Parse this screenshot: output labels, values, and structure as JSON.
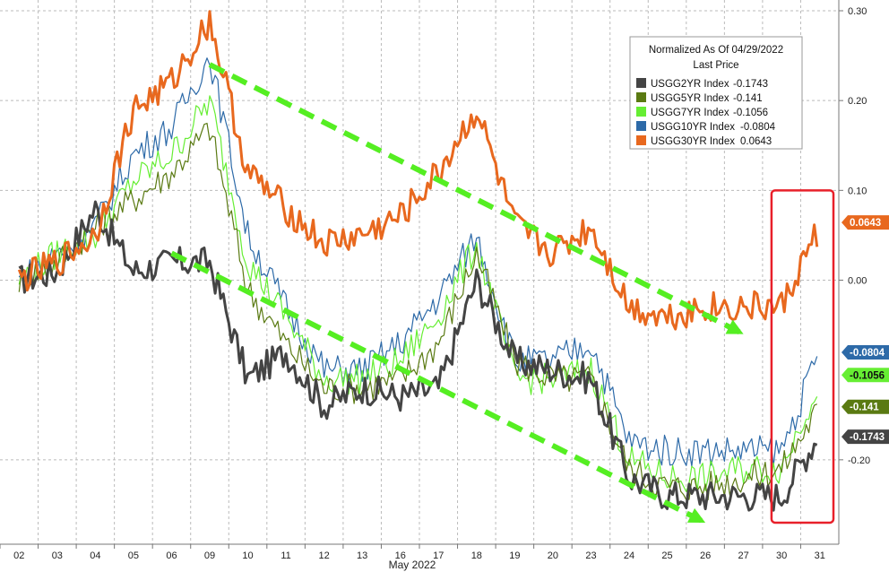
{
  "chart_data": {
    "type": "line",
    "title": "",
    "xlabel": "May 2022",
    "ylabel": "",
    "ylim": [
      -0.29,
      0.3
    ],
    "grid": true,
    "legend_placement": "top-right",
    "legend": {
      "header_line1": "Normalized As Of 04/29/2022",
      "header_line2": "Last Price"
    },
    "y_ticks": [
      {
        "value": 0.3,
        "label": "0.30"
      },
      {
        "value": 0.2,
        "label": "0.20"
      },
      {
        "value": 0.1,
        "label": "0.10"
      },
      {
        "value": 0.0,
        "label": "0.00"
      },
      {
        "value": -0.2,
        "label": "-0.20"
      }
    ],
    "categories": [
      "02",
      "03",
      "04",
      "05",
      "06",
      "09",
      "10",
      "11",
      "12",
      "13",
      "16",
      "17",
      "18",
      "19",
      "20",
      "23",
      "24",
      "25",
      "26",
      "27",
      "30",
      "31"
    ],
    "series": [
      {
        "name": "USGG2YR Index",
        "label": "USGG2YR Index",
        "value_label": "-0.1743",
        "last": -0.1743,
        "color": "#444444",
        "values": [
          0.0,
          0.01,
          0.08,
          0.01,
          0.02,
          0.02,
          -0.11,
          -0.08,
          -0.14,
          -0.12,
          -0.13,
          -0.12,
          0.0,
          -0.09,
          -0.1,
          -0.11,
          -0.22,
          -0.24,
          -0.24,
          -0.24,
          -0.24,
          -0.17
        ]
      },
      {
        "name": "USGG5YR Index",
        "label": "USGG5YR Index",
        "value_label": "-0.141",
        "last": -0.141,
        "color": "#5a7a12",
        "values": [
          0.0,
          0.02,
          0.06,
          0.09,
          0.12,
          0.17,
          -0.01,
          -0.07,
          -0.12,
          -0.12,
          -0.11,
          -0.07,
          0.03,
          -0.09,
          -0.11,
          -0.11,
          -0.21,
          -0.23,
          -0.23,
          -0.22,
          -0.21,
          -0.14
        ]
      },
      {
        "name": "USGG7YR Index",
        "label": "USGG7YR Index",
        "value_label": "-0.1056",
        "last": -0.1056,
        "color": "#66ee33",
        "values": [
          0.0,
          0.03,
          0.05,
          0.11,
          0.14,
          0.2,
          0.02,
          -0.04,
          -0.11,
          -0.11,
          -0.09,
          -0.04,
          0.04,
          -0.11,
          -0.11,
          -0.1,
          -0.2,
          -0.22,
          -0.22,
          -0.21,
          -0.21,
          -0.11
        ]
      },
      {
        "name": "USGG10YR Index",
        "label": "USGG10YR Index",
        "value_label": "-0.0804",
        "last": -0.0804,
        "color": "#2d6aa8",
        "values": [
          0.0,
          0.03,
          0.06,
          0.14,
          0.17,
          0.25,
          0.05,
          -0.03,
          -0.1,
          -0.1,
          -0.07,
          -0.02,
          0.05,
          -0.09,
          -0.09,
          -0.07,
          -0.18,
          -0.19,
          -0.19,
          -0.19,
          -0.19,
          -0.08
        ]
      },
      {
        "name": "USGG30YR Index",
        "label": "USGG30YR Index",
        "value_label": "0.0643",
        "last": 0.0643,
        "color": "#e8681e",
        "values": [
          0.0,
          0.02,
          0.05,
          0.19,
          0.22,
          0.29,
          0.12,
          0.08,
          0.04,
          0.05,
          0.07,
          0.12,
          0.19,
          0.06,
          0.03,
          0.06,
          -0.03,
          -0.04,
          -0.03,
          -0.03,
          -0.03,
          0.06
        ]
      }
    ],
    "annotations": [
      {
        "type": "dashed-arrow",
        "color": "#55ee22",
        "from": {
          "x": "09",
          "y": 0.24
        },
        "to": {
          "x": "27",
          "y": -0.06
        }
      },
      {
        "type": "dashed-arrow",
        "color": "#55ee22",
        "from": {
          "x": "06",
          "y": 0.03
        },
        "to": {
          "x": "26",
          "y": -0.27
        }
      },
      {
        "type": "highlight-box",
        "color": "#e8202a",
        "x_from": "30",
        "x_to": "31",
        "y_from": -0.27,
        "y_to": 0.1
      }
    ]
  }
}
